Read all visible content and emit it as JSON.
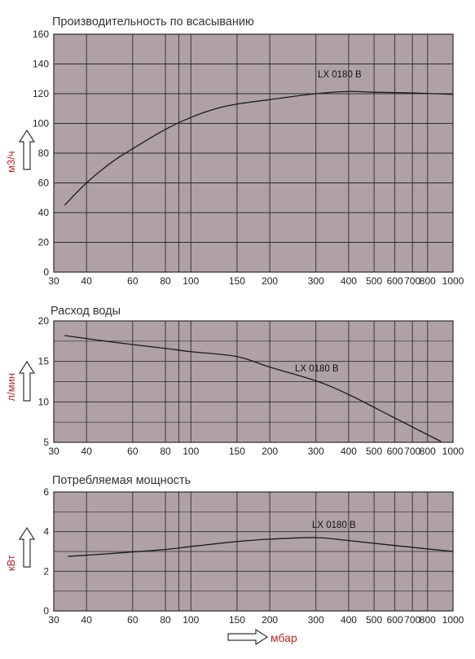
{
  "colors": {
    "plot_bg": "#b0a1a8",
    "grid": "#2a2a2a",
    "curve": "#1a1a1a",
    "label_red": "#b02a2a",
    "text": "#222222"
  },
  "x_axis_label": "мбар",
  "chart_data": [
    {
      "type": "line",
      "title": "Производительность по всасыванию",
      "ylabel": "м3/ч",
      "x_scale": "log",
      "xlim": [
        30,
        1000
      ],
      "ylim": [
        0,
        160
      ],
      "x_ticks": [
        30,
        40,
        60,
        80,
        100,
        150,
        200,
        300,
        400,
        500,
        600,
        700,
        800,
        1000
      ],
      "y_ticks": [
        0,
        20,
        40,
        60,
        80,
        100,
        120,
        140,
        160
      ],
      "grid": true,
      "series": [
        {
          "name": "LX 0180 B",
          "x": [
            33,
            40,
            50,
            60,
            80,
            100,
            125,
            150,
            200,
            300,
            400,
            500,
            700,
            1000
          ],
          "y": [
            45,
            60,
            74,
            83,
            96,
            104,
            110,
            113,
            116,
            120,
            121.5,
            121,
            120.5,
            119.5
          ]
        }
      ]
    },
    {
      "type": "line",
      "title": "Расход воды",
      "ylabel": "л/мин",
      "x_scale": "log",
      "xlim": [
        30,
        1000
      ],
      "ylim": [
        5,
        20
      ],
      "x_ticks": [
        30,
        40,
        60,
        80,
        100,
        150,
        200,
        300,
        400,
        500,
        600,
        700,
        800,
        1000
      ],
      "y_ticks": [
        5,
        10,
        15,
        20
      ],
      "grid": true,
      "series": [
        {
          "name": "LX 0180 B",
          "x": [
            33,
            50,
            80,
            100,
            150,
            200,
            300,
            400,
            600,
            900
          ],
          "y": [
            18.2,
            17.4,
            16.6,
            16.2,
            15.6,
            14.3,
            12.6,
            10.9,
            8.0,
            5.1
          ]
        }
      ]
    },
    {
      "type": "line",
      "title": "Потребляемая мощность",
      "ylabel": "кВт",
      "x_scale": "log",
      "xlim": [
        30,
        1000
      ],
      "ylim": [
        0,
        6
      ],
      "x_ticks": [
        30,
        40,
        60,
        80,
        100,
        150,
        200,
        300,
        400,
        500,
        600,
        700,
        800,
        1000
      ],
      "y_ticks": [
        0,
        2,
        4,
        6
      ],
      "grid": true,
      "series": [
        {
          "name": "LX 0180 B",
          "x": [
            34,
            50,
            80,
            100,
            150,
            200,
            300,
            400,
            600,
            1000
          ],
          "y": [
            2.75,
            2.9,
            3.1,
            3.25,
            3.5,
            3.62,
            3.7,
            3.55,
            3.3,
            3.0
          ]
        }
      ]
    }
  ]
}
